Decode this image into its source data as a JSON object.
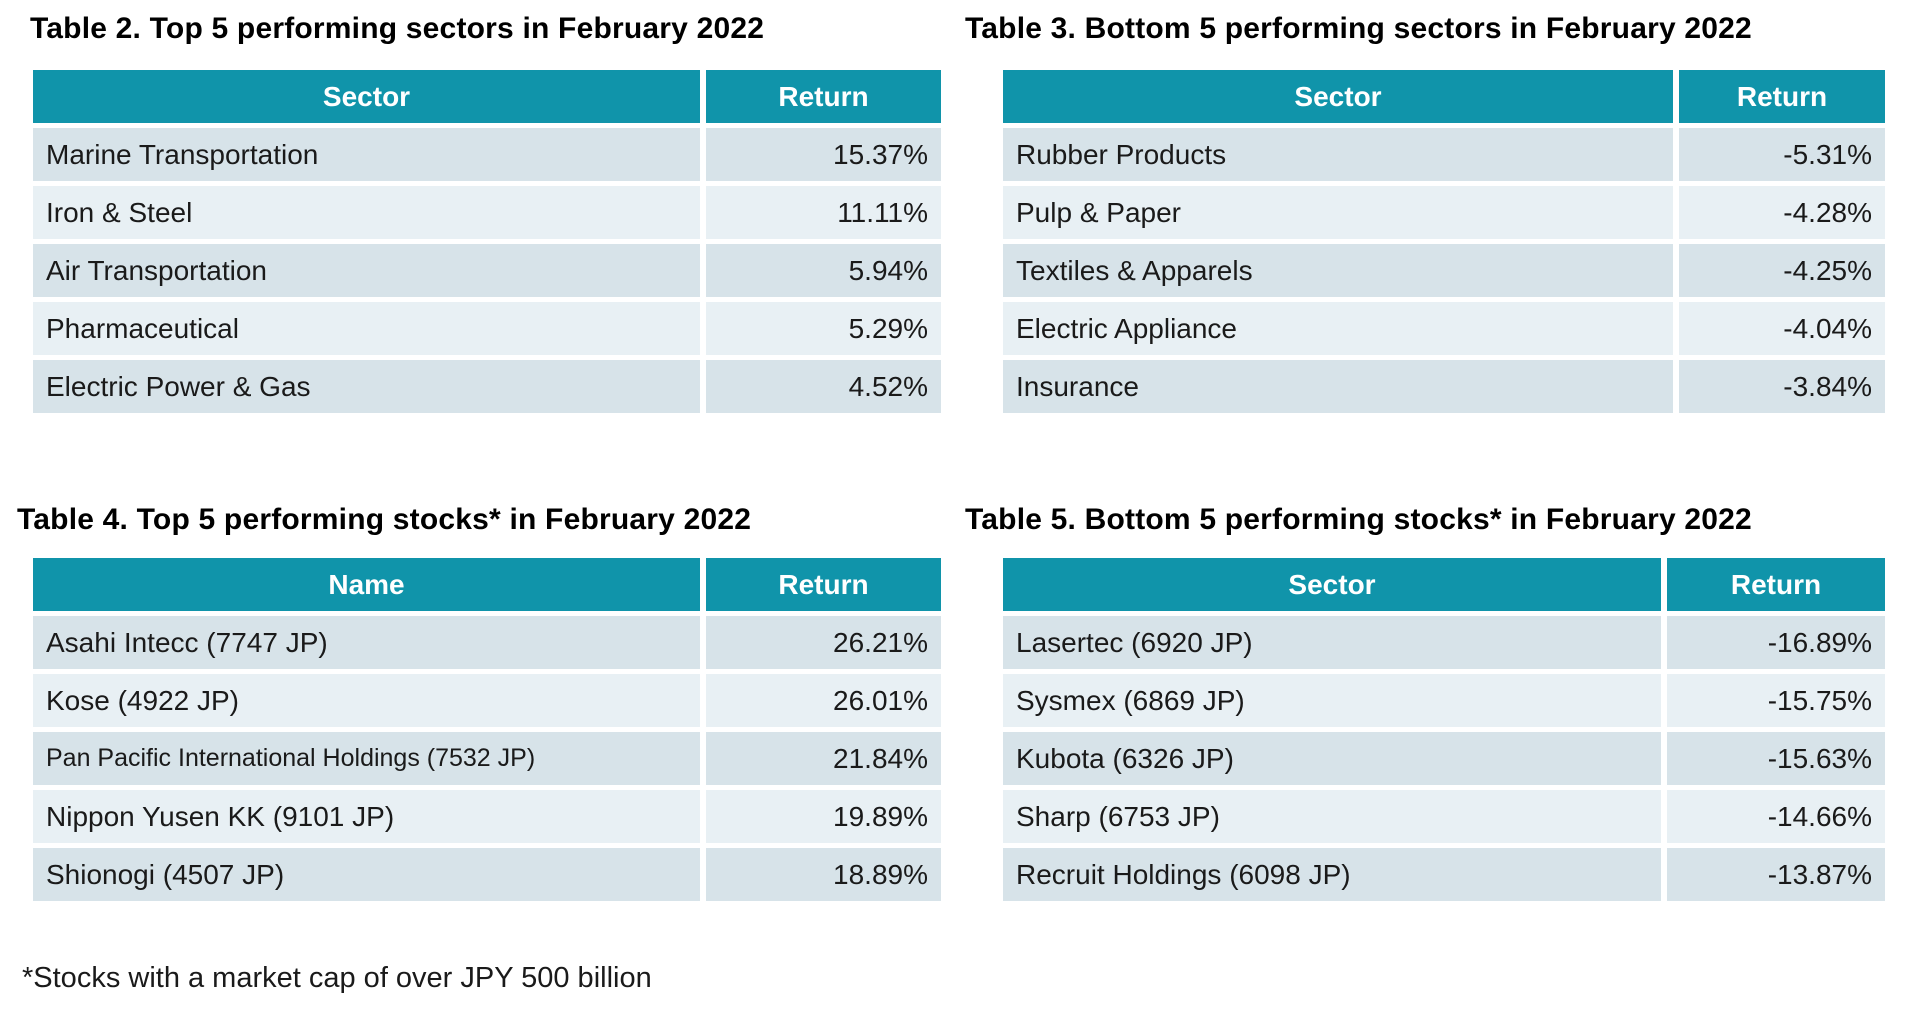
{
  "page": {
    "footnote": "*Stocks with a market cap of over JPY 500 billion"
  },
  "colors": {
    "header_bg": "#1094AA",
    "header_text": "#ffffff",
    "row_dark_bg": "#D7E3E9",
    "row_light_bg": "#E8F0F4",
    "text": "#1a1a1a"
  },
  "tables": [
    {
      "title": "Table 2. Top 5 performing sectors in February 2022",
      "columns": [
        "Sector",
        "Return"
      ],
      "rows": [
        {
          "label": "Marine Transportation",
          "value": "15.37%"
        },
        {
          "label": "Iron & Steel",
          "value": "11.11%"
        },
        {
          "label": "Air Transportation",
          "value": "5.94%"
        },
        {
          "label": "Pharmaceutical",
          "value": "5.29%"
        },
        {
          "label": "Electric Power & Gas",
          "value": "4.52%"
        }
      ]
    },
    {
      "title": "Table 3. Bottom 5 performing sectors in February 2022",
      "columns": [
        "Sector",
        "Return"
      ],
      "rows": [
        {
          "label": "Rubber Products",
          "value": "-5.31%"
        },
        {
          "label": "Pulp & Paper",
          "value": "-4.28%"
        },
        {
          "label": "Textiles & Apparels",
          "value": "-4.25%"
        },
        {
          "label": "Electric Appliance",
          "value": "-4.04%"
        },
        {
          "label": "Insurance",
          "value": "-3.84%"
        }
      ]
    },
    {
      "title": "Table 4. Top 5 performing stocks* in February 2022",
      "columns": [
        "Name",
        "Return"
      ],
      "rows": [
        {
          "label": "Asahi Intecc (7747 JP)",
          "value": "26.21%"
        },
        {
          "label": "Kose (4922 JP)",
          "value": "26.01%"
        },
        {
          "label": "Pan Pacific International Holdings (7532 JP)",
          "value": "21.84%"
        },
        {
          "label": "Nippon Yusen KK (9101 JP)",
          "value": "19.89%"
        },
        {
          "label": "Shionogi (4507 JP)",
          "value": "18.89%"
        }
      ]
    },
    {
      "title": "Table 5. Bottom 5 performing stocks* in February 2022",
      "columns": [
        "Sector",
        "Return"
      ],
      "rows": [
        {
          "label": "Lasertec (6920 JP)",
          "value": "-16.89%"
        },
        {
          "label": "Sysmex (6869 JP)",
          "value": "-15.75%"
        },
        {
          "label": "Kubota (6326 JP)",
          "value": "-15.63%"
        },
        {
          "label": "Sharp (6753 JP)",
          "value": "-14.66%"
        },
        {
          "label": "Recruit Holdings (6098 JP)",
          "value": "-13.87%"
        }
      ]
    }
  ]
}
